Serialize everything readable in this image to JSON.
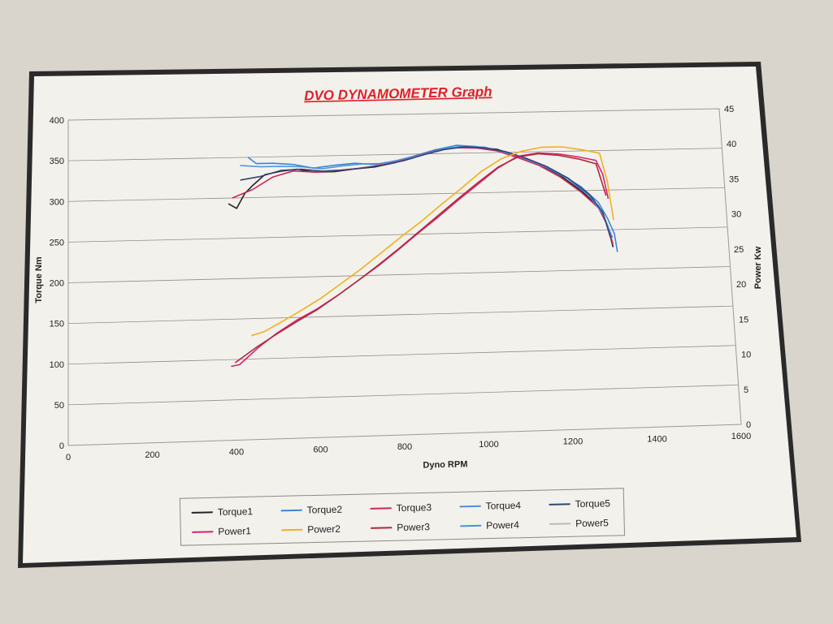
{
  "chart_data": {
    "type": "line",
    "title": "DVO DYNAMOMETER Graph",
    "xlabel": "Dyno RPM",
    "ylabel": "Torque Nm",
    "y2label": "Power Kw",
    "xlim": [
      0,
      1600
    ],
    "ylim": [
      0,
      400
    ],
    "y2lim": [
      0,
      45
    ],
    "xticks": [
      "0",
      "200",
      "400",
      "600",
      "800",
      "1000",
      "1200",
      "1400",
      "1600"
    ],
    "yticks": [
      "0",
      "50",
      "100",
      "150",
      "200",
      "250",
      "300",
      "350",
      "400"
    ],
    "y2ticks": [
      "0",
      "5",
      "10",
      "15",
      "20",
      "25",
      "30",
      "35",
      "40",
      "45"
    ],
    "grid": "horizontal",
    "legend_position": "bottom",
    "series": [
      {
        "name": "Torque1",
        "axis": "left",
        "color": "#222222",
        "x": [
          390,
          410,
          430,
          450,
          480,
          520,
          560,
          600,
          650,
          700,
          750,
          800,
          850,
          900,
          950,
          1000,
          1050,
          1100,
          1150,
          1200,
          1250,
          1290,
          1310,
          1320
        ],
        "y": [
          293,
          287,
          305,
          315,
          328,
          332,
          334,
          330,
          330,
          333,
          335,
          340,
          348,
          355,
          357,
          357,
          354,
          345,
          335,
          320,
          300,
          280,
          255,
          228
        ]
      },
      {
        "name": "Torque2",
        "axis": "left",
        "color": "#3b86d6",
        "x": [
          440,
          460,
          500,
          550,
          600,
          650,
          700,
          750,
          800,
          850,
          900,
          950,
          1000,
          1050,
          1100,
          1150,
          1200,
          1250,
          1290,
          1310,
          1325,
          1330
        ],
        "y": [
          350,
          342,
          342,
          340,
          335,
          338,
          340,
          338,
          342,
          348,
          355,
          360,
          358,
          352,
          345,
          335,
          322,
          305,
          285,
          265,
          245,
          222
        ]
      },
      {
        "name": "Torque3",
        "axis": "left",
        "color": "#c8285a",
        "x": [
          400,
          450,
          500,
          550,
          600,
          650,
          700,
          750,
          800,
          850,
          900,
          950,
          1000,
          1050,
          1100,
          1150,
          1200,
          1250,
          1290,
          1310,
          1320
        ],
        "y": [
          300,
          310,
          325,
          332,
          330,
          331,
          333,
          336,
          341,
          348,
          354,
          357,
          356,
          352,
          343,
          333,
          318,
          298,
          278,
          255,
          232
        ]
      },
      {
        "name": "Torque4",
        "axis": "left",
        "color": "#4a90d9",
        "x": [
          420,
          470,
          520,
          570,
          620,
          670,
          720,
          770,
          820,
          870,
          920,
          970,
          1020,
          1070,
          1120,
          1170,
          1220,
          1270,
          1300,
          1320
        ],
        "y": [
          340,
          338,
          338,
          337,
          334,
          337,
          339,
          339,
          344,
          350,
          356,
          359,
          357,
          350,
          342,
          330,
          315,
          293,
          270,
          240
        ]
      },
      {
        "name": "Torque5",
        "axis": "left",
        "color": "#34437a",
        "x": [
          420,
          470,
          520,
          570,
          620,
          670,
          720,
          770,
          820,
          870,
          920,
          970,
          1020,
          1070,
          1120,
          1170,
          1220,
          1270,
          1300,
          1315
        ],
        "y": [
          322,
          326,
          333,
          334,
          331,
          332,
          334,
          337,
          342,
          349,
          355,
          358,
          356,
          351,
          342,
          331,
          316,
          295,
          272,
          240
        ]
      },
      {
        "name": "Power1",
        "axis": "right",
        "color": "#d6246e",
        "x": [
          390,
          410,
          430,
          460,
          500,
          550,
          600,
          650,
          700,
          750,
          800,
          850,
          900,
          950,
          1000,
          1050,
          1100,
          1150,
          1200,
          1250,
          1290,
          1305,
          1315
        ],
        "y": [
          10.3,
          10.5,
          11.5,
          13.0,
          14.7,
          16.5,
          18.0,
          19.8,
          21.8,
          23.8,
          26.0,
          28.3,
          30.5,
          32.8,
          35.0,
          37.2,
          38.8,
          39.2,
          39.0,
          38.5,
          38.0,
          36.0,
          32.5
        ]
      },
      {
        "name": "Power2",
        "axis": "right",
        "color": "#f0b020",
        "x": [
          440,
          470,
          510,
          560,
          610,
          660,
          710,
          760,
          810,
          860,
          910,
          960,
          1010,
          1060,
          1110,
          1160,
          1210,
          1260,
          1300,
          1315,
          1325
        ],
        "y": [
          14.5,
          15.0,
          16.2,
          17.8,
          19.5,
          21.5,
          23.5,
          25.7,
          27.9,
          30.0,
          32.3,
          34.5,
          36.8,
          38.5,
          39.5,
          40.0,
          40.0,
          39.5,
          39.0,
          35.0,
          29.5
        ]
      },
      {
        "name": "Power3",
        "axis": "right",
        "color": "#b0283c",
        "x": [
          400,
          450,
          500,
          550,
          600,
          650,
          700,
          750,
          800,
          850,
          900,
          950,
          1000,
          1050,
          1100,
          1150,
          1200,
          1250,
          1290,
          1310
        ],
        "y": [
          10.8,
          12.8,
          14.6,
          16.3,
          17.9,
          19.8,
          21.8,
          23.9,
          26.1,
          28.4,
          30.7,
          33.0,
          35.2,
          37.3,
          38.7,
          39.1,
          38.8,
          38.2,
          37.5,
          33.0
        ]
      },
      {
        "name": "Power4",
        "axis": "right",
        "color": "#4a90d9",
        "x": [],
        "y": []
      },
      {
        "name": "Power5",
        "axis": "right",
        "color": "#bbbbbb",
        "x": [],
        "y": []
      }
    ]
  }
}
